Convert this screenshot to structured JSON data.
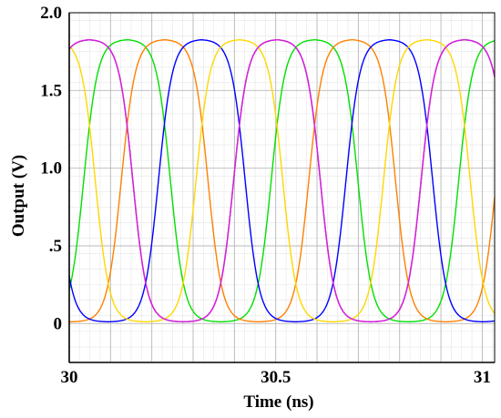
{
  "chart_data": {
    "type": "line",
    "title": "",
    "xlabel": "Time (ns)",
    "ylabel": "Output (V)",
    "xlim": [
      30,
      31.03
    ],
    "ylim": [
      -0.25,
      2.0
    ],
    "grid": true,
    "x_ticks": [
      {
        "value": 30,
        "label": "30"
      },
      {
        "value": 30.5,
        "label": "30.5"
      },
      {
        "value": 31,
        "label": "31"
      }
    ],
    "y_ticks": [
      {
        "value": 0,
        "label": "0"
      },
      {
        "value": 0.5,
        "label": ".5"
      },
      {
        "value": 1.0,
        "label": "1.0"
      },
      {
        "value": 1.5,
        "label": "1.5"
      },
      {
        "value": 2.0,
        "label": "2.0"
      }
    ],
    "waveform": {
      "period_ns": 0.454,
      "v_high": 1.83,
      "v_low": 0.01,
      "peak_spacing_ns": 0.0908
    },
    "series": [
      {
        "color": "#ff0000",
        "peak_times_ns": [
          30.049,
          30.503,
          30.957
        ]
      },
      {
        "color": "#00e000",
        "peak_times_ns": [
          30.14,
          30.594
        ]
      },
      {
        "color": "#ff8000",
        "peak_times_ns": [
          30.231,
          30.685
        ]
      },
      {
        "color": "#0000ff",
        "peak_times_ns": [
          30.321,
          30.775
        ]
      },
      {
        "color": "#ffd700",
        "peak_times_ns": [
          30.412,
          30.866
        ]
      },
      {
        "color": "#cc22ee",
        "peak_times_ns": [
          30.503,
          30.957
        ]
      }
    ]
  }
}
